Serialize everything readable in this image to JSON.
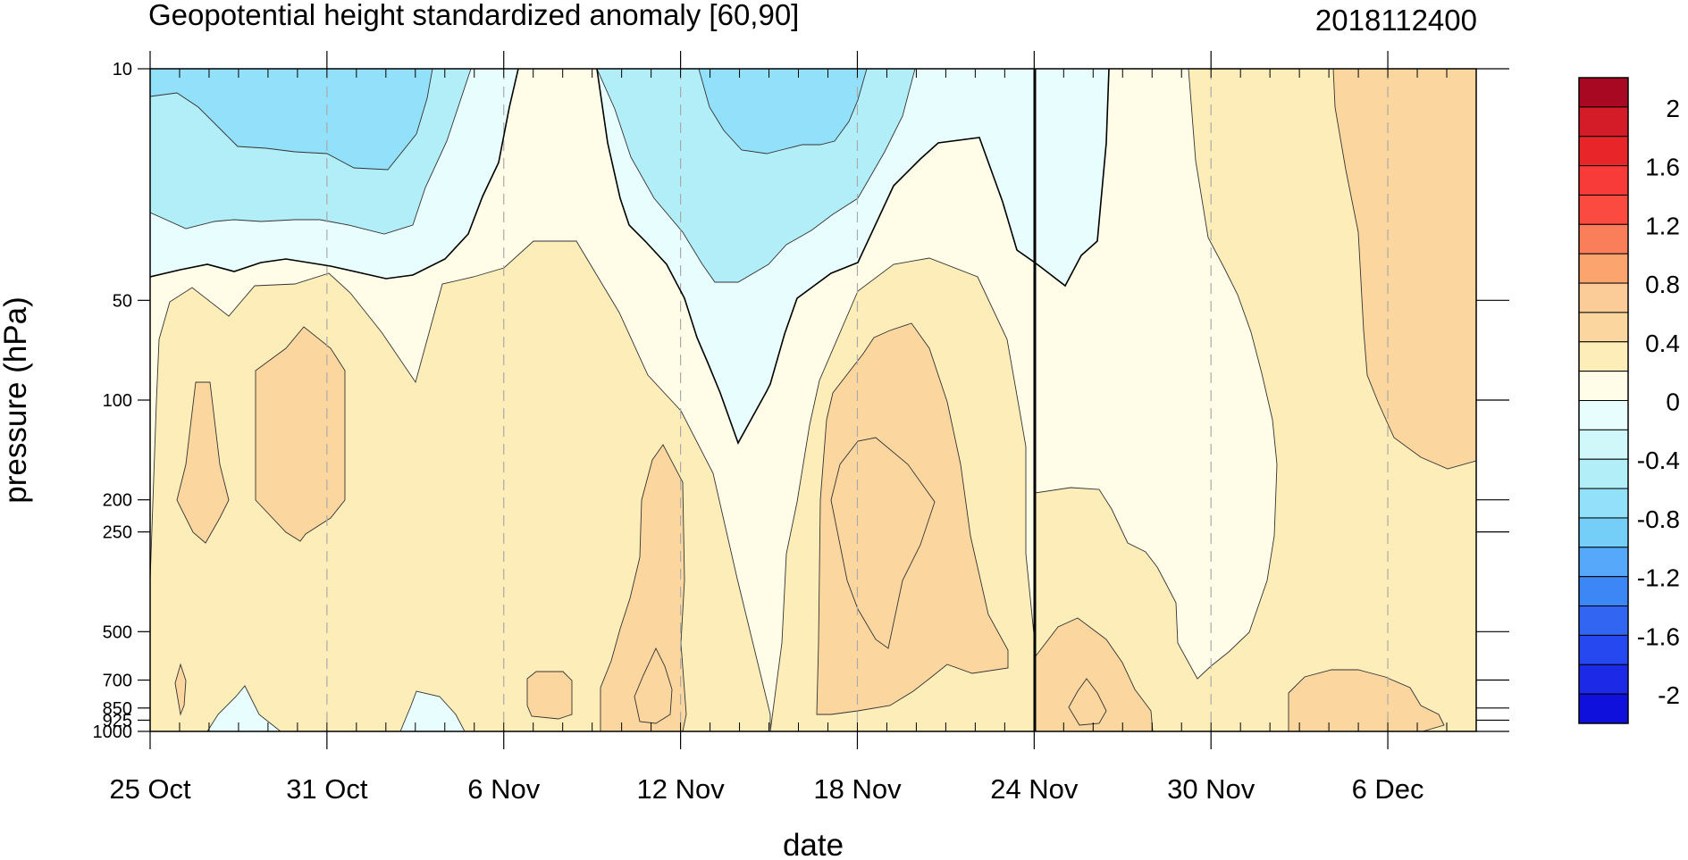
{
  "chart_data": {
    "type": "heatmap",
    "title": "Geopotential height standardized anomaly [60,90]",
    "date_label": "2018112400",
    "xlabel": "date",
    "ylabel": "pressure (hPa)",
    "x_ticks": [
      "25 Oct",
      "31 Oct",
      "6 Nov",
      "12 Nov",
      "18 Nov",
      "24 Nov",
      "30 Nov",
      "6 Dec"
    ],
    "x_range": [
      "2018-10-25",
      "2018-12-09"
    ],
    "y_scale": "log",
    "y_range": [
      1000,
      10
    ],
    "y_ticks": [
      10,
      50,
      100,
      200,
      250,
      500,
      700,
      850,
      925,
      1000
    ],
    "y_tick_labels": [
      "10",
      "50",
      "100",
      "200",
      "250",
      "500",
      "700",
      "850",
      "925",
      "1000"
    ],
    "vertical_line": "24 Nov",
    "contour_levels": [
      -2.2,
      -2,
      -1.8,
      -1.6,
      -1.4,
      -1.2,
      -1,
      -0.8,
      -0.6,
      -0.4,
      -0.2,
      0,
      0.2,
      0.4,
      0.6,
      0.8,
      1,
      1.2,
      1.4,
      1.6,
      1.8,
      2,
      2.2
    ],
    "colorbar": {
      "colors": [
        "#1010dc",
        "#1c2ae8",
        "#2648f0",
        "#3266f2",
        "#3d86f5",
        "#56a8fb",
        "#74cef8",
        "#92e0fa",
        "#b2eef8",
        "#d0f7fa",
        "#e8fdfd",
        "#fffce8",
        "#fcedb9",
        "#fbd79f",
        "#fccc98",
        "#fba46e",
        "#fb7e5a",
        "#fb4a40",
        "#f83a38",
        "#e8262a",
        "#d41c28",
        "#a80822"
      ],
      "labels": [
        "2",
        "1.6",
        "1.2",
        "0.8",
        "0.4",
        "0",
        "-0.4",
        "-0.8",
        "-1.2",
        "-1.6",
        "-2"
      ]
    },
    "regions": [
      {
        "level": "0 to 0.2",
        "color": "#fffce8"
      },
      {
        "level": "0.2 to 0.4",
        "color": "#fcedb9"
      },
      {
        "level": "0.4 to 0.6",
        "color": "#fbd79f"
      },
      {
        "level": "-0.2 to 0",
        "color": "#e8fdfd"
      },
      {
        "level": "-0.4 to -0.2",
        "color": "#b2eef8"
      },
      {
        "level": "-0.6 to -0.4",
        "color": "#92e0fa"
      }
    ]
  }
}
